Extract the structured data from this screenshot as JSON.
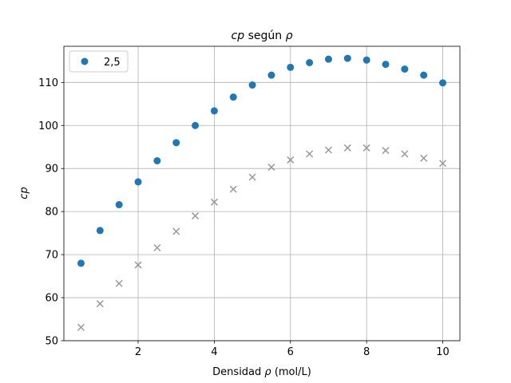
{
  "chart_data": {
    "type": "scatter",
    "title_main": "cp",
    "title_mid": " según ",
    "title_sym": "ρ",
    "xlabel_pre": "Densidad ",
    "xlabel_sym": "ρ",
    "xlabel_post": " (mol/L)",
    "ylabel": "cp",
    "xlim": [
      0.05,
      10.45
    ],
    "ylim": [
      50,
      118.4
    ],
    "xticks": [
      2,
      4,
      6,
      8,
      10
    ],
    "yticks": [
      50,
      60,
      70,
      80,
      90,
      100,
      110
    ],
    "grid": true,
    "legend_position": "upper-left",
    "series": [
      {
        "name": "2,5",
        "marker": "circle",
        "color": "#1f77b4",
        "x": [
          0.5,
          1.0,
          1.5,
          2.0,
          2.5,
          3.0,
          3.5,
          4.0,
          4.5,
          5.0,
          5.5,
          6.0,
          6.5,
          7.0,
          7.5,
          8.0,
          8.5,
          9.0,
          9.5,
          10.0
        ],
        "y": [
          68.0,
          75.6,
          81.6,
          86.9,
          91.8,
          96.0,
          100.0,
          103.4,
          106.6,
          109.4,
          111.7,
          113.5,
          114.6,
          115.4,
          115.6,
          115.2,
          114.2,
          113.1,
          111.7,
          109.9
        ]
      },
      {
        "marker": "x",
        "color": "#999999",
        "x": [
          0.5,
          1.0,
          1.5,
          2.0,
          2.5,
          3.0,
          3.5,
          4.0,
          4.5,
          5.0,
          5.5,
          6.0,
          6.5,
          7.0,
          7.5,
          8.0,
          8.5,
          9.0,
          9.5,
          10.0
        ],
        "y": [
          53.1,
          58.6,
          63.3,
          67.6,
          71.6,
          75.4,
          79.0,
          82.2,
          85.2,
          88.0,
          90.3,
          92.0,
          93.4,
          94.3,
          94.8,
          94.8,
          94.2,
          93.4,
          92.4,
          91.2
        ]
      }
    ]
  }
}
